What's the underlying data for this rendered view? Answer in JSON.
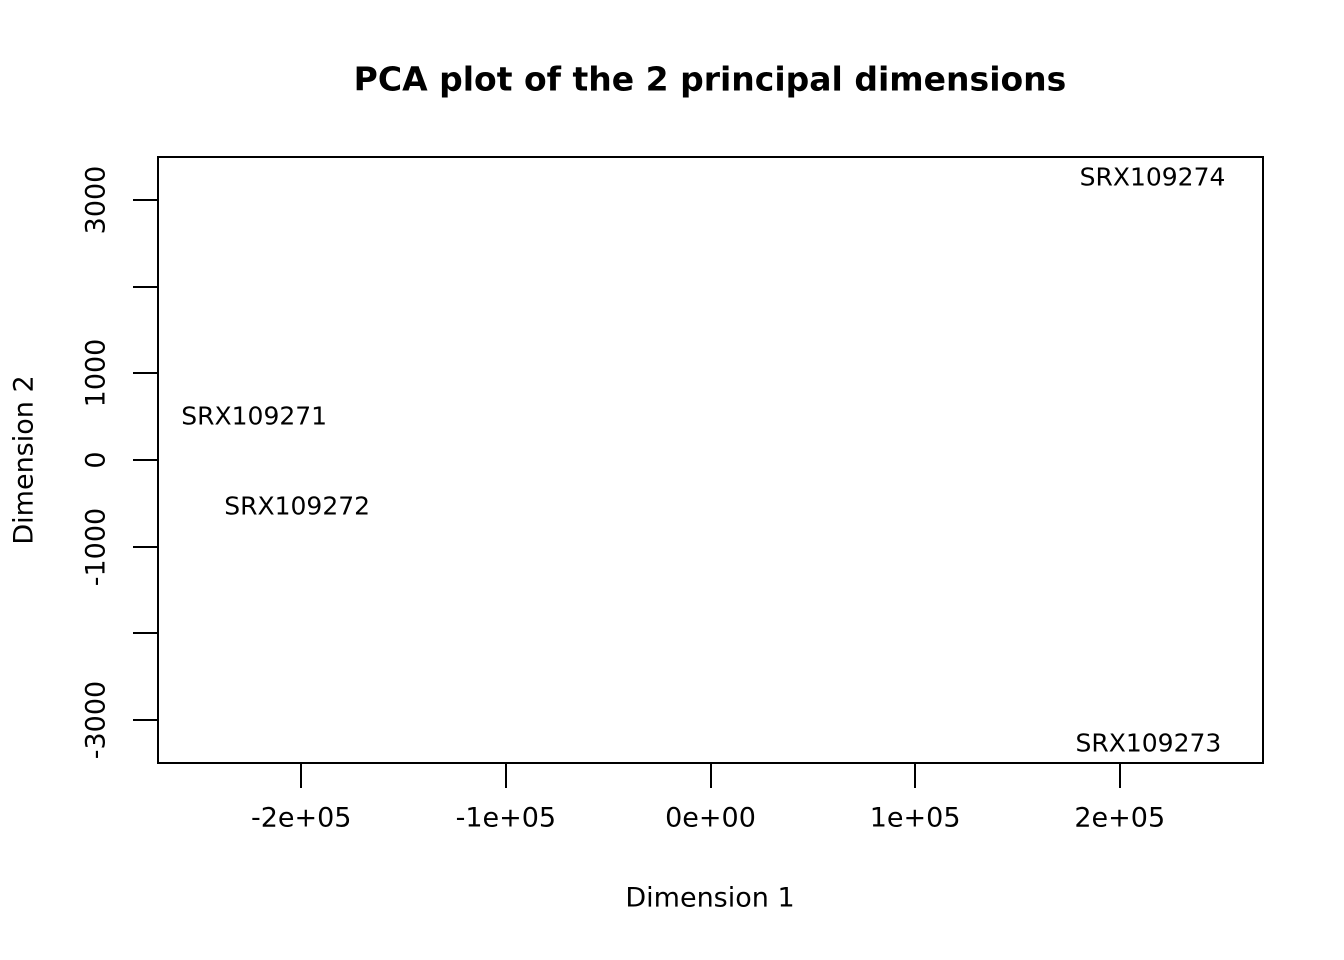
{
  "figure": {
    "foreground_color": "#000000",
    "background_color": "#ffffff"
  },
  "chart_data": {
    "type": "scatter",
    "marker": "text-label",
    "grid": false,
    "legend": "none",
    "title": "PCA plot of the 2 principal dimensions",
    "xlabel": "Dimension 1",
    "ylabel": "Dimension 2",
    "xlim": [
      -270000,
      270000
    ],
    "ylim": [
      -3500,
      3500
    ],
    "x_ticks": [
      {
        "value": -200000,
        "label": "-2e+05"
      },
      {
        "value": -100000,
        "label": "-1e+05"
      },
      {
        "value": 0,
        "label": "0e+00"
      },
      {
        "value": 100000,
        "label": "1e+05"
      },
      {
        "value": 200000,
        "label": "2e+05"
      }
    ],
    "y_ticks": [
      {
        "value": 3000,
        "label": "3000"
      },
      {
        "value": 2000,
        "label": ""
      },
      {
        "value": 1000,
        "label": "1000"
      },
      {
        "value": 0,
        "label": "0"
      },
      {
        "value": -1000,
        "label": "-1000"
      },
      {
        "value": -2000,
        "label": ""
      },
      {
        "value": -3000,
        "label": "-3000"
      }
    ],
    "points": [
      {
        "label": "SRX109271",
        "x": -223000,
        "y": 510
      },
      {
        "label": "SRX109272",
        "x": -202000,
        "y": -535
      },
      {
        "label": "SRX109273",
        "x": 214000,
        "y": -3270
      },
      {
        "label": "SRX109274",
        "x": 216000,
        "y": 3270
      }
    ]
  }
}
